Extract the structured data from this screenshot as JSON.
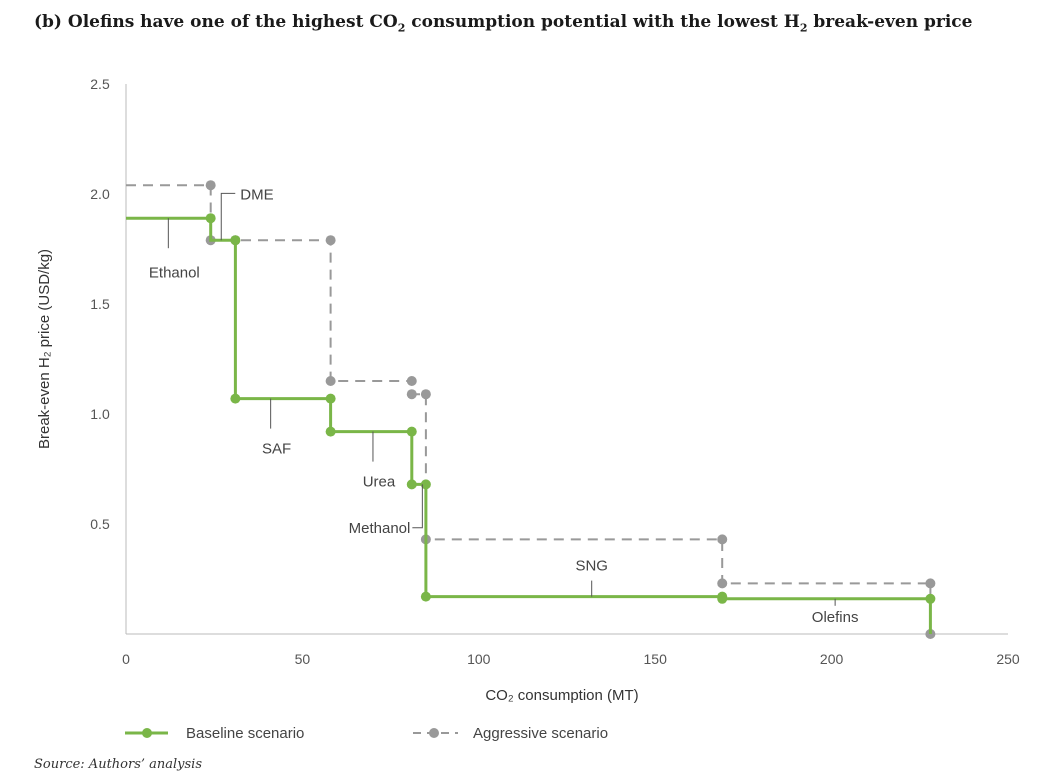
{
  "title_pre": "(b) Olefins have one of the highest CO",
  "title_sub1": "2",
  "title_mid": " consumption potential with the lowest H",
  "title_sub2": "2",
  "title_post": " break-even price",
  "source": "Source: Authors’ analysis",
  "chart_data": {
    "type": "line",
    "step": true,
    "xlabel": "CO₂ consumption (MT)",
    "ylabel": "Break-even H₂ price (USD/kg)",
    "xlim": [
      0,
      250
    ],
    "ylim": [
      0,
      2.5
    ],
    "x_ticks": [
      0,
      50,
      100,
      150,
      200,
      250
    ],
    "y_ticks": [
      0.5,
      1.0,
      1.5,
      2.0,
      2.5
    ],
    "y_tick_labels": [
      "0.5",
      "1.0",
      "1.5",
      "2.0",
      "2.5"
    ],
    "legend_position": "bottom-left",
    "series": [
      {
        "name": "Baseline scenario",
        "style": "solid",
        "color": "#7ab648",
        "x": [
          0,
          24,
          24,
          31,
          31,
          58,
          58,
          81,
          81,
          85,
          85,
          169,
          169,
          228,
          228
        ],
        "y": [
          1.89,
          1.89,
          1.79,
          1.79,
          1.07,
          1.07,
          0.92,
          0.92,
          0.68,
          0.68,
          0.17,
          0.17,
          0.16,
          0.16,
          0.0
        ],
        "markers_x": [
          24,
          31,
          31,
          58,
          58,
          81,
          81,
          85,
          85,
          169,
          169,
          228
        ],
        "markers_y": [
          1.89,
          1.79,
          1.07,
          1.07,
          0.92,
          0.92,
          0.68,
          0.68,
          0.17,
          0.17,
          0.16,
          0.16
        ]
      },
      {
        "name": "Aggressive scenario",
        "style": "dashed",
        "color": "#999999",
        "x": [
          0,
          24,
          24,
          58,
          58,
          81,
          81,
          85,
          85,
          169,
          169,
          228,
          228
        ],
        "y": [
          2.04,
          2.04,
          1.79,
          1.79,
          1.15,
          1.15,
          1.09,
          1.09,
          0.43,
          0.43,
          0.23,
          0.23,
          0.0
        ],
        "markers_x": [
          24,
          24,
          31,
          58,
          58,
          81,
          81,
          85,
          85,
          169,
          169,
          228,
          228
        ],
        "markers_y": [
          2.04,
          1.79,
          1.79,
          1.79,
          1.15,
          1.15,
          1.09,
          1.09,
          0.43,
          0.43,
          0.23,
          0.23,
          0.0
        ]
      }
    ],
    "annotations": [
      {
        "text": "Ethanol",
        "x": 12,
        "y": 1.89,
        "label_y": 1.62,
        "leader": "vertical"
      },
      {
        "text": "DME",
        "x": 27,
        "y": 1.79,
        "label_y": 1.98,
        "leader": "elbow"
      },
      {
        "text": "SAF",
        "x": 41,
        "y": 1.07,
        "label_y": 0.82,
        "leader": "vertical"
      },
      {
        "text": "Urea",
        "x": 70,
        "y": 0.92,
        "label_y": 0.67,
        "leader": "vertical"
      },
      {
        "text": "Methanol",
        "x": 84,
        "y": 0.68,
        "label_y": 0.46,
        "leader": "elbow-left"
      },
      {
        "text": "SNG",
        "x": 132,
        "y": 0.17,
        "label_y": 0.23,
        "leader": "vertical-up"
      },
      {
        "text": "Olefins",
        "x": 201,
        "y": 0.16,
        "label_y": 0.0,
        "leader": "vertical-down"
      }
    ]
  }
}
